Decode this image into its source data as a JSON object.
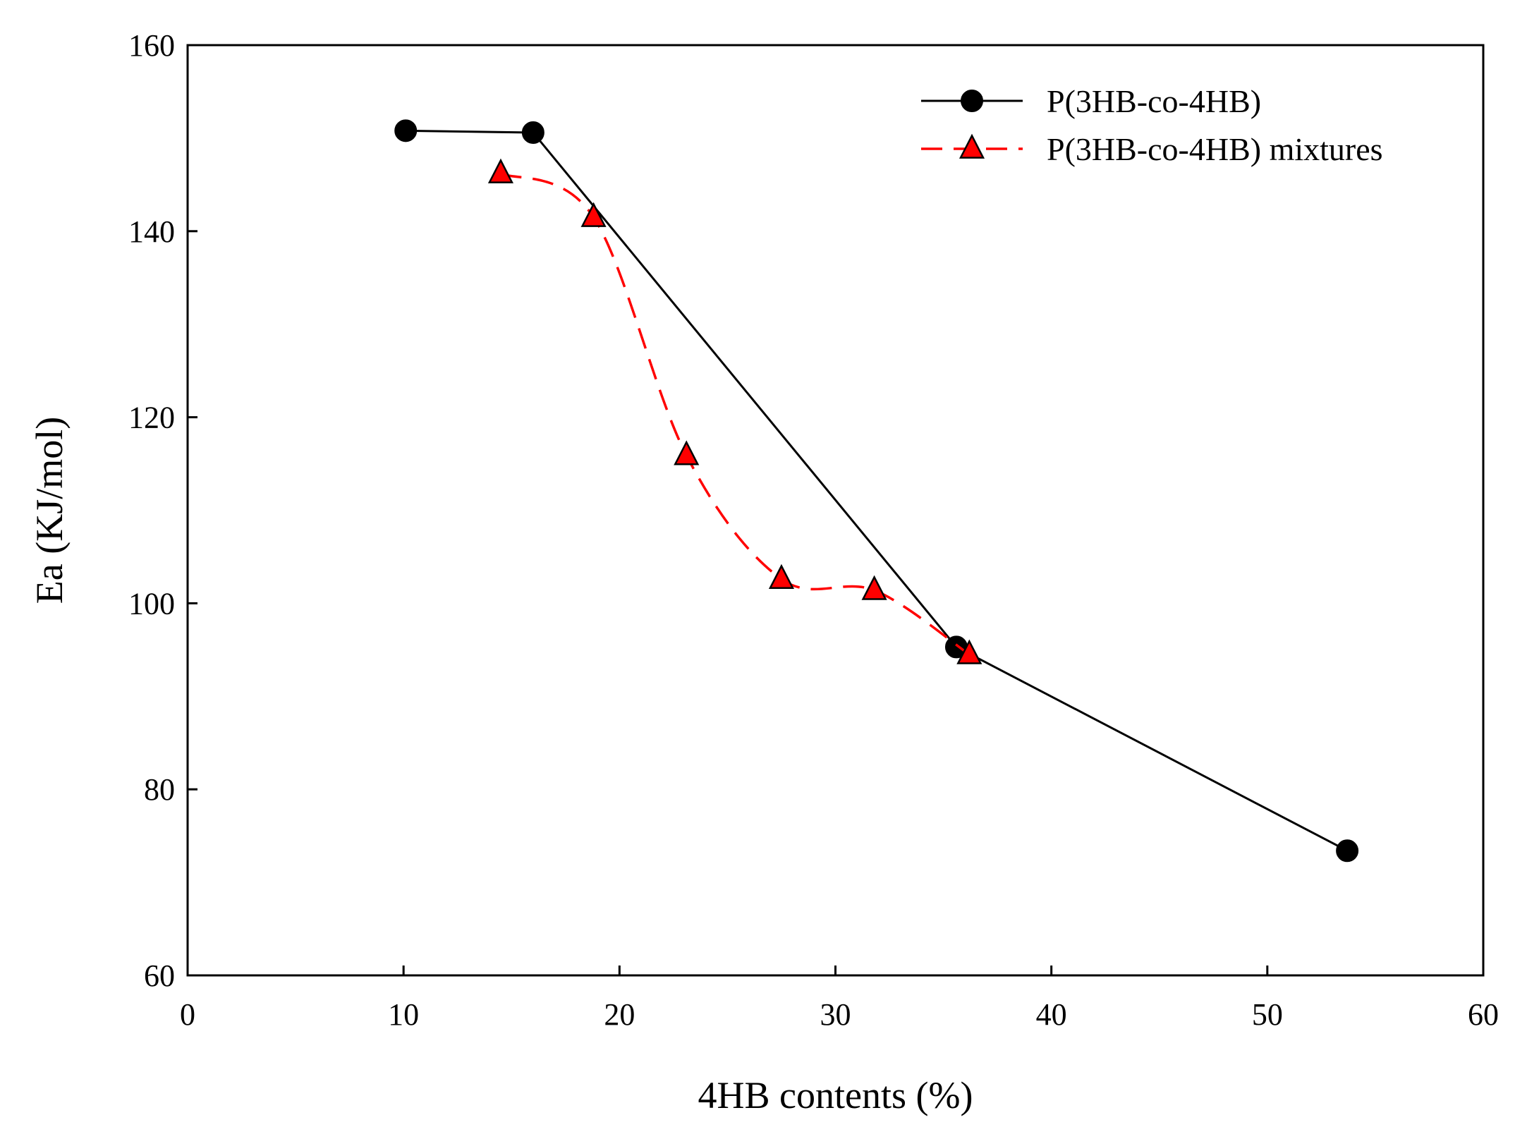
{
  "chart_data": {
    "type": "line",
    "title": "",
    "xlabel": "4HB contents (%)",
    "ylabel": "Ea (KJ/mol)",
    "xlim": [
      0,
      60
    ],
    "ylim": [
      60,
      160
    ],
    "xticks": [
      0,
      10,
      20,
      30,
      40,
      50,
      60
    ],
    "yticks": [
      60,
      80,
      100,
      120,
      140,
      160
    ],
    "grid": false,
    "legend_position": "top-right",
    "series": [
      {
        "name": "P(3HB-co-4HB)",
        "marker": "circle",
        "line_style": "solid",
        "color": "#000000",
        "x": [
          10.1,
          16.0,
          35.6,
          53.7
        ],
        "y": [
          150.8,
          150.6,
          95.3,
          73.4
        ]
      },
      {
        "name": "P(3HB-co-4HB) mixtures",
        "marker": "triangle",
        "line_style": "dashed",
        "color": "#ff0000",
        "marker_fill": "#ff0000",
        "x": [
          14.5,
          18.8,
          23.1,
          27.5,
          31.8,
          36.2
        ],
        "y": [
          146.2,
          141.5,
          115.9,
          102.6,
          101.4,
          94.5
        ]
      }
    ]
  }
}
